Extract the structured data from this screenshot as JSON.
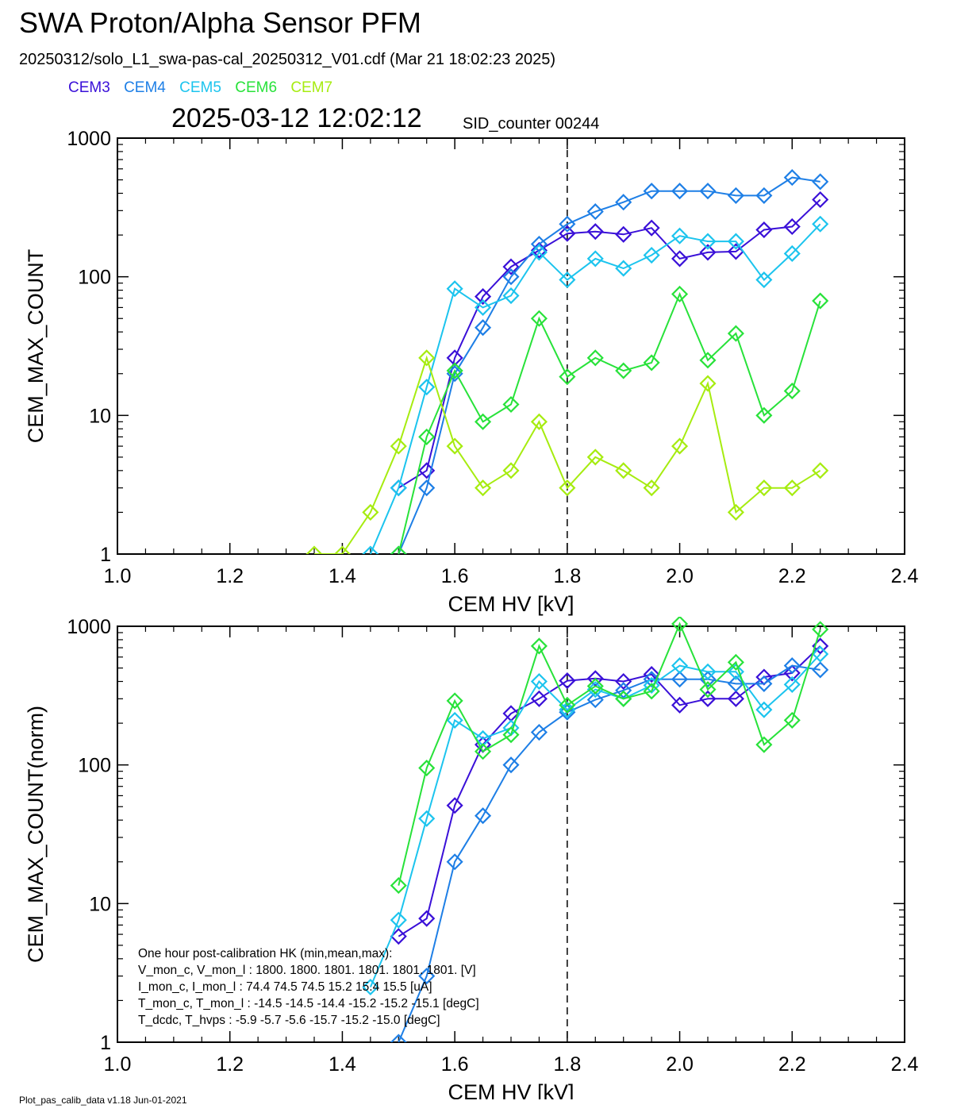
{
  "header": {
    "title": "SWA Proton/Alpha Sensor PFM",
    "file_line": "20250312/solo_L1_swa-pas-cal_20250312_V01.cdf  (Mar 21 18:02:23 2025)",
    "timestamp": "2025-03-12 12:02:12",
    "sid_counter": "SID_counter 00244"
  },
  "legend": [
    {
      "name": "CEM3",
      "color": "#3a10d8"
    },
    {
      "name": "CEM4",
      "color": "#1e7fe6"
    },
    {
      "name": "CEM5",
      "color": "#1cc4ee"
    },
    {
      "name": "CEM6",
      "color": "#28e23a"
    },
    {
      "name": "CEM7",
      "color": "#a6ec10"
    }
  ],
  "footer": "Plot_pas_calib_data v1.18 Jun-01-2021",
  "chart_data": [
    {
      "type": "line",
      "xlabel": "CEM HV [kV]",
      "ylabel": "CEM_MAX_COUNT",
      "xlim": [
        1.0,
        2.4
      ],
      "ylim": [
        1,
        1000
      ],
      "yscale": "log",
      "x_ticks": [
        "1.0",
        "1.2",
        "1.4",
        "1.6",
        "1.8",
        "2.0",
        "2.2",
        "2.4"
      ],
      "y_ticks": [
        "1",
        "10",
        "100",
        "1000"
      ],
      "vline": 1.8,
      "marker": "diamond",
      "series": [
        {
          "name": "CEM3",
          "color": "#3a10d8",
          "x": [
            1.5,
            1.55,
            1.6,
            1.65,
            1.7,
            1.75,
            1.8,
            1.85,
            1.9,
            1.95,
            2.0,
            2.05,
            2.1,
            2.15,
            2.2,
            2.25
          ],
          "y": [
            3,
            4,
            26,
            72,
            118,
            155,
            205,
            212,
            202,
            225,
            135,
            150,
            152,
            218,
            230,
            360
          ]
        },
        {
          "name": "CEM4",
          "color": "#1e7fe6",
          "x": [
            1.5,
            1.55,
            1.6,
            1.65,
            1.7,
            1.75,
            1.8,
            1.85,
            1.9,
            1.95,
            2.0,
            2.05,
            2.1,
            2.15,
            2.2,
            2.25
          ],
          "y": [
            1,
            3,
            20,
            43,
            100,
            172,
            240,
            295,
            345,
            415,
            415,
            415,
            385,
            385,
            520,
            485
          ]
        },
        {
          "name": "CEM5",
          "color": "#1cc4ee",
          "x": [
            1.45,
            1.5,
            1.55,
            1.6,
            1.65,
            1.7,
            1.75,
            1.8,
            1.85,
            1.9,
            1.95,
            2.0,
            2.05,
            2.1,
            2.15,
            2.2,
            2.25
          ],
          "y": [
            1,
            3,
            16,
            82,
            60,
            73,
            150,
            95,
            135,
            115,
            143,
            197,
            180,
            180,
            95,
            147,
            240
          ]
        },
        {
          "name": "CEM6",
          "color": "#28e23a",
          "x": [
            1.5,
            1.55,
            1.6,
            1.65,
            1.7,
            1.75,
            1.8,
            1.85,
            1.9,
            1.95,
            2.0,
            2.05,
            2.1,
            2.15,
            2.2,
            2.25
          ],
          "y": [
            1,
            7,
            21,
            9,
            12,
            50,
            19,
            26,
            21,
            24,
            75,
            25,
            39,
            10,
            15,
            67
          ]
        },
        {
          "name": "CEM7",
          "color": "#a6ec10",
          "x": [
            1.35,
            1.4,
            1.45,
            1.5,
            1.55,
            1.6,
            1.65,
            1.7,
            1.75,
            1.8,
            1.85,
            1.9,
            1.95,
            2.0,
            2.05,
            2.1,
            2.15,
            2.2,
            2.25
          ],
          "y": [
            1,
            1,
            2,
            6,
            26,
            6,
            3,
            4,
            9,
            3,
            5,
            4,
            3,
            6,
            17,
            2,
            3,
            3,
            4
          ]
        }
      ]
    },
    {
      "type": "line",
      "xlabel": "CEM HV [kV]",
      "ylabel": "CEM_MAX_COUNT(norm)",
      "xlim": [
        1.0,
        2.4
      ],
      "ylim": [
        1,
        1000
      ],
      "yscale": "log",
      "x_ticks": [
        "1.0",
        "1.2",
        "1.4",
        "1.6",
        "1.8",
        "2.0",
        "2.2",
        "2.4"
      ],
      "y_ticks": [
        "1",
        "10",
        "100",
        "1000"
      ],
      "vline": 1.8,
      "marker": "diamond",
      "series": [
        {
          "name": "CEM3",
          "color": "#3a10d8",
          "x": [
            1.5,
            1.55,
            1.6,
            1.65,
            1.7,
            1.75,
            1.8,
            1.85,
            1.9,
            1.95,
            2.0,
            2.05,
            2.1,
            2.15,
            2.2,
            2.25
          ],
          "y": [
            5.8,
            7.8,
            51,
            140,
            235,
            300,
            405,
            420,
            400,
            450,
            270,
            300,
            300,
            430,
            460,
            720
          ]
        },
        {
          "name": "CEM4",
          "color": "#1e7fe6",
          "x": [
            1.5,
            1.55,
            1.6,
            1.65,
            1.7,
            1.75,
            1.8,
            1.85,
            1.9,
            1.95,
            2.0,
            2.05,
            2.1,
            2.15,
            2.2,
            2.25
          ],
          "y": [
            1,
            3,
            20,
            43,
            100,
            172,
            240,
            295,
            345,
            415,
            415,
            415,
            385,
            385,
            520,
            485
          ]
        },
        {
          "name": "CEM5",
          "color": "#1cc4ee",
          "x": [
            1.45,
            1.5,
            1.55,
            1.6,
            1.65,
            1.7,
            1.75,
            1.8,
            1.85,
            1.9,
            1.95,
            2.0,
            2.05,
            2.1,
            2.15,
            2.2,
            2.25
          ],
          "y": [
            2.5,
            7.6,
            41,
            210,
            155,
            185,
            400,
            250,
            350,
            300,
            375,
            520,
            470,
            470,
            250,
            380,
            630
          ]
        },
        {
          "name": "CEM6",
          "color": "#28e23a",
          "x": [
            1.5,
            1.55,
            1.6,
            1.65,
            1.7,
            1.75,
            1.8,
            1.85,
            1.9,
            1.95,
            2.0,
            2.05,
            2.1,
            2.15,
            2.2,
            2.25
          ],
          "y": [
            13.5,
            95,
            290,
            125,
            165,
            720,
            270,
            370,
            300,
            340,
            1040,
            350,
            550,
            140,
            210,
            950
          ]
        }
      ],
      "annotation": [
        "One hour post-calibration HK (min,mean,max):",
        "V_mon_c, V_mon_l :   1800.  1800.  1801.      1801.  1801.  1801. [V]",
        "I_mon_c,  I_mon_l :     74.4   74.5   74.5        15.2   15.4   15.5  [uA]",
        "T_mon_c, T_mon_l :   -14.5  -14.5  -14.4        -15.2  -15.2  -15.1  [degC]",
        "T_dcdc,    T_hvps :      -5.9   -5.7   -5.6         -15.7  -15.2  -15.0  [degC]"
      ]
    }
  ]
}
